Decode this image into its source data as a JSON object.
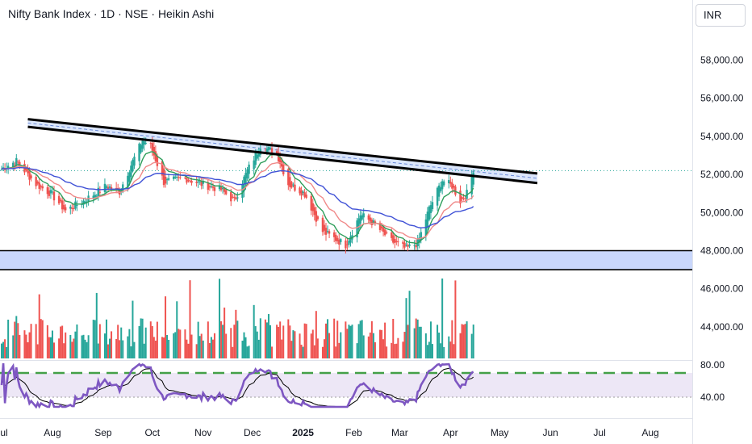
{
  "header": {
    "title": "Nifty Bank Index · 1D · NSE · Heikin Ashi",
    "currency_label": "INR"
  },
  "colors": {
    "up": "#26a69a",
    "down": "#ef5350",
    "ema_fast": "#2e9e5b",
    "ema_mid": "#f08a8a",
    "ema_slow": "#3f51d6",
    "trendline": "#000000",
    "support_zone_fill": "#c9d7fb",
    "rsi_line": "#7e57c2",
    "rsi_signal": "#000000",
    "rsi_level_dash": "#43a047",
    "rsi_band_fill": "#ede7f6"
  },
  "chart_data": [
    {
      "type": "candlestick",
      "pane": "price",
      "chart_style": "Heikin Ashi",
      "y_axis": {
        "ticks": [
          44000,
          46000,
          48000,
          50000,
          52000,
          54000,
          56000,
          58000
        ],
        "tick_labels": [
          "44,000.00",
          "46,000.00",
          "48,000.00",
          "50,000.00",
          "52,000.00",
          "54,000.00",
          "56,000.00",
          "58,000.00"
        ]
      },
      "x_axis": {
        "tick_labels": [
          "Jul",
          "Aug",
          "Sep",
          "Oct",
          "Nov",
          "Dec",
          "2025",
          "Feb",
          "Mar",
          "Apr",
          "May",
          "Jun",
          "Jul",
          "Aug"
        ],
        "bold_labels": [
          "2025"
        ],
        "range": [
          "2024-07",
          "2025-08"
        ]
      },
      "close_anchors": [
        [
          "2024-07-01",
          52300
        ],
        [
          "2024-07-10",
          52700
        ],
        [
          "2024-07-22",
          51500
        ],
        [
          "2024-07-31",
          51000
        ],
        [
          "2024-08-09",
          50100
        ],
        [
          "2024-08-20",
          50600
        ],
        [
          "2024-09-03",
          51400
        ],
        [
          "2024-09-11",
          51100
        ],
        [
          "2024-09-18",
          52500
        ],
        [
          "2024-09-25",
          53800
        ],
        [
          "2024-09-30",
          53500
        ],
        [
          "2024-10-08",
          51600
        ],
        [
          "2024-10-21",
          51800
        ],
        [
          "2024-10-31",
          51500
        ],
        [
          "2024-11-12",
          51200
        ],
        [
          "2024-11-20",
          50600
        ],
        [
          "2024-11-28",
          52200
        ],
        [
          "2024-12-06",
          53500
        ],
        [
          "2024-12-16",
          53100
        ],
        [
          "2024-12-23",
          51500
        ],
        [
          "2025-01-02",
          51000
        ],
        [
          "2025-01-13",
          49000
        ],
        [
          "2025-01-27",
          48300
        ],
        [
          "2025-02-05",
          49900
        ],
        [
          "2025-02-12",
          49500
        ],
        [
          "2025-02-24",
          48500
        ],
        [
          "2025-03-05",
          48100
        ],
        [
          "2025-03-12",
          48400
        ],
        [
          "2025-03-19",
          50200
        ],
        [
          "2025-03-27",
          51700
        ],
        [
          "2025-04-02",
          51400
        ],
        [
          "2025-04-07",
          50600
        ],
        [
          "2025-04-11",
          51000
        ],
        [
          "2025-04-15",
          52300
        ]
      ],
      "moving_averages": [
        {
          "color_key": "ema_fast",
          "length_days": 10
        },
        {
          "color_key": "ema_mid",
          "length_days": 21
        },
        {
          "color_key": "ema_slow",
          "length_days": 50
        }
      ],
      "annotations": {
        "descending_resistance_channel": {
          "upper_line": [
            [
              "2024-07-17",
              54900
            ],
            [
              "2025-05-24",
              52050
            ]
          ],
          "lower_line": [
            [
              "2024-07-17",
              54500
            ],
            [
              "2025-05-24",
              51550
            ]
          ]
        },
        "support_zone": [
          47000,
          48000
        ],
        "last_price_dotted_level": 52200
      }
    },
    {
      "type": "bar",
      "pane": "volume",
      "note": "volume histogram colored by candle direction, no axis labels shown"
    },
    {
      "type": "line",
      "pane": "RSI",
      "y_axis": {
        "ticks": [
          40,
          80
        ],
        "tick_labels": [
          "40.00",
          "80.00"
        ]
      },
      "levels": {
        "dashed": 70,
        "band": [
          40,
          70
        ]
      },
      "last_value": 72
    }
  ]
}
